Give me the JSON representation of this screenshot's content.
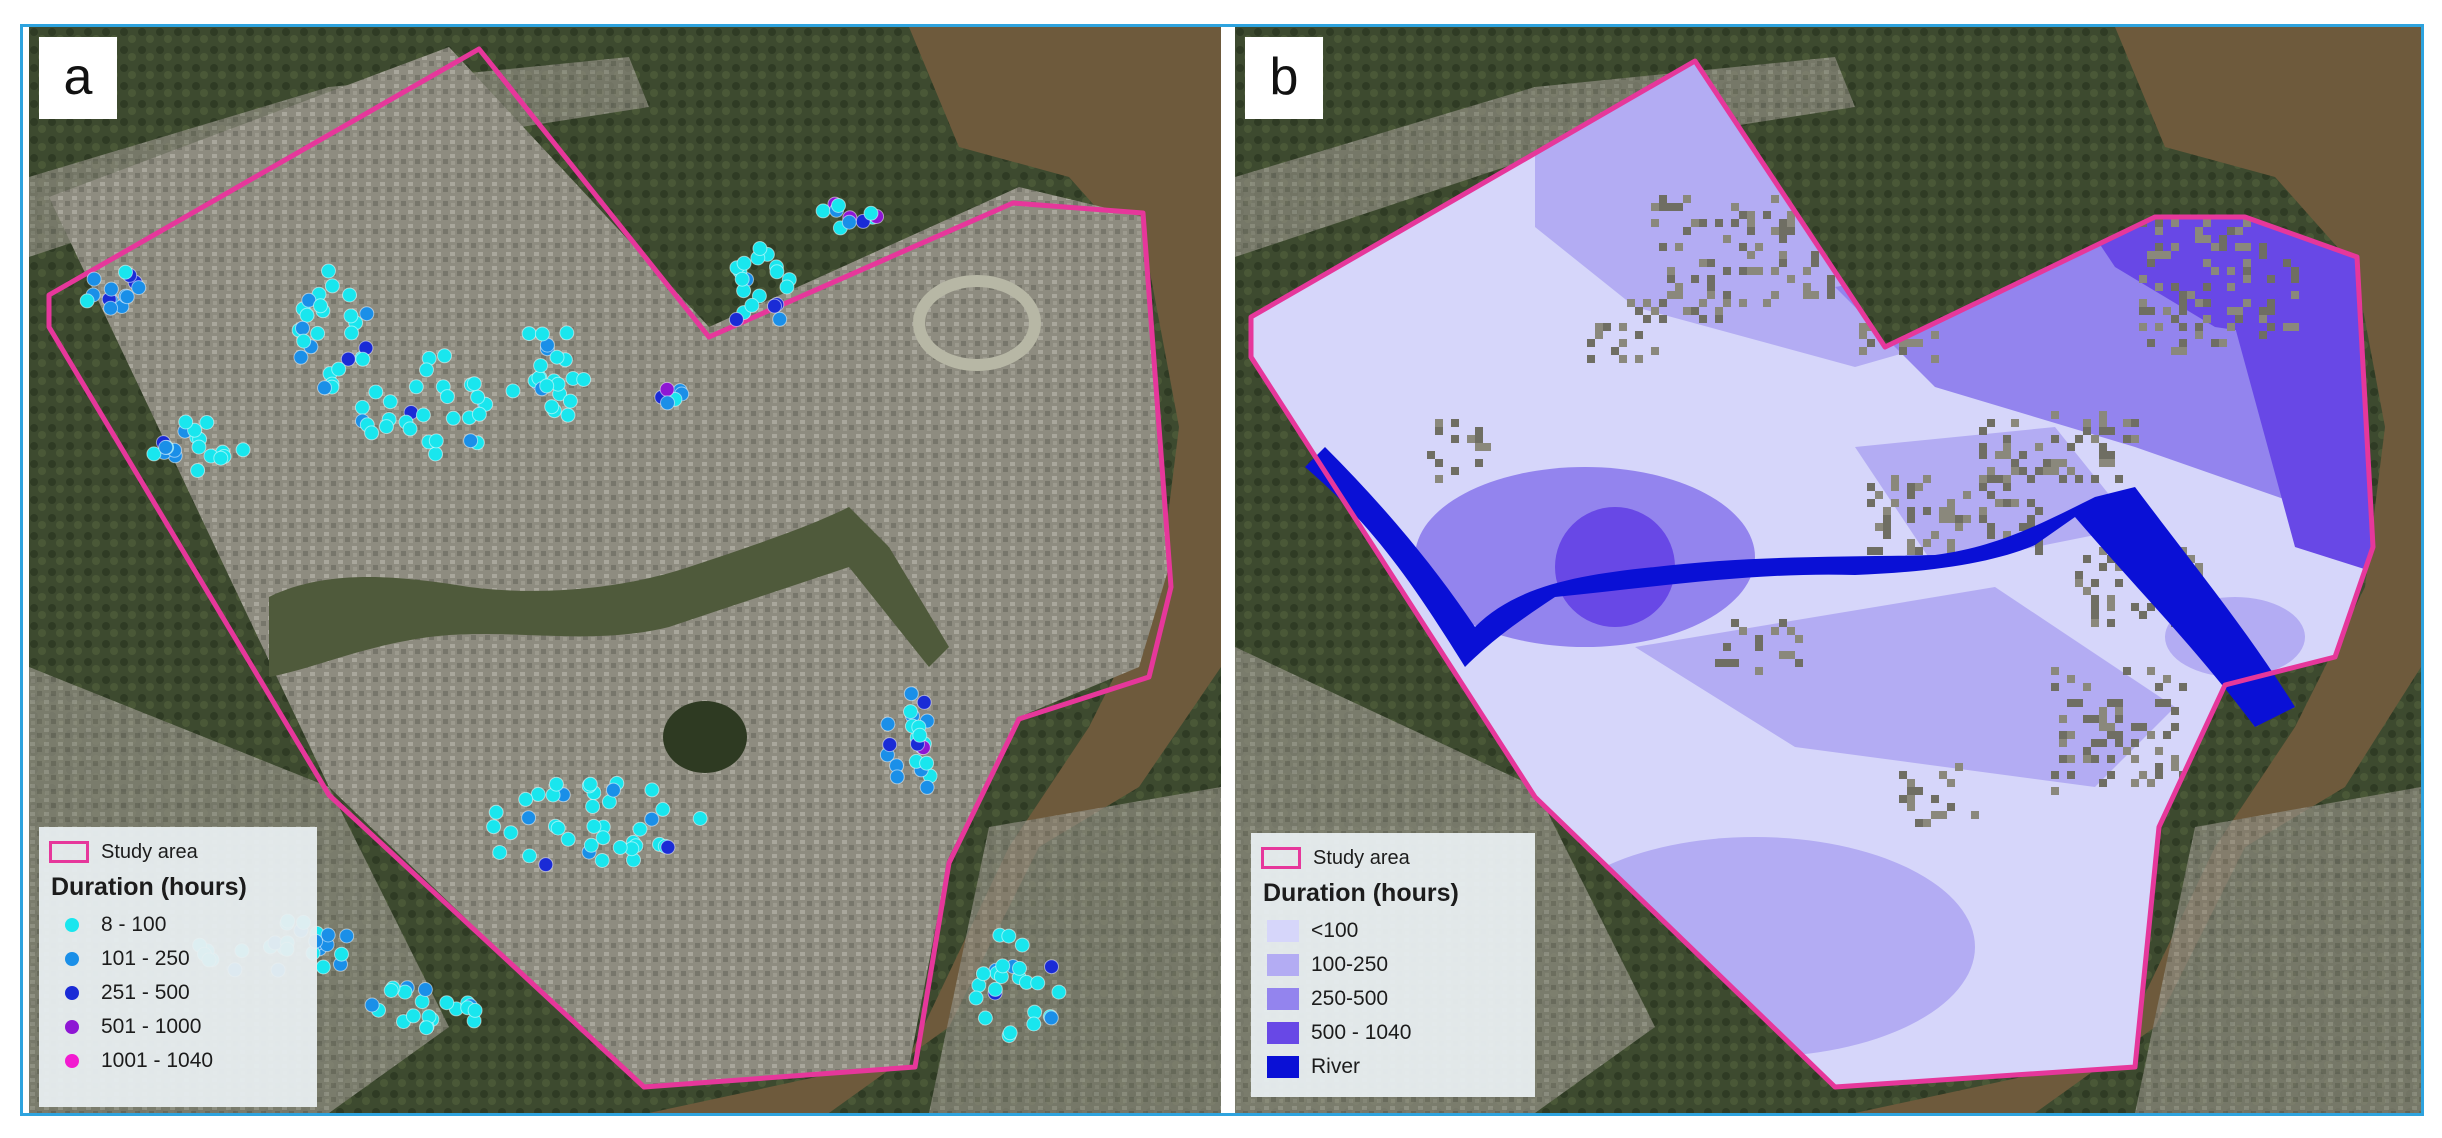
{
  "panels": {
    "a": {
      "label": "a",
      "legend": {
        "study_area_label": "Study area",
        "title": "Duration (hours)",
        "classes": [
          {
            "label": "8 - 100",
            "color": "#19e6ee"
          },
          {
            "label": "101 - 250",
            "color": "#1a8fe8"
          },
          {
            "label": "251 - 500",
            "color": "#1a2bd6"
          },
          {
            "label": "501 - 1000",
            "color": "#8e16d4"
          },
          {
            "label": "1001 - 1040",
            "color": "#f21bd0"
          }
        ]
      }
    },
    "b": {
      "label": "b",
      "legend": {
        "study_area_label": "Study area",
        "title": "Duration (hours)",
        "classes": [
          {
            "label": "<100",
            "color": "#d6d6fa"
          },
          {
            "label": "100-250",
            "color": "#b3acf3"
          },
          {
            "label": "250-500",
            "color": "#9384ee"
          },
          {
            "label": "500 - 1040",
            "color": "#6848e6"
          },
          {
            "label": "River",
            "color": "#0a10d6"
          }
        ]
      }
    }
  },
  "colors": {
    "study_area_outline": "#e6379b",
    "frame_border": "#2ea3de",
    "river_water": "#6e5a3c",
    "urban": "#8b8a7e",
    "vegetation": "#3c4a2e"
  }
}
